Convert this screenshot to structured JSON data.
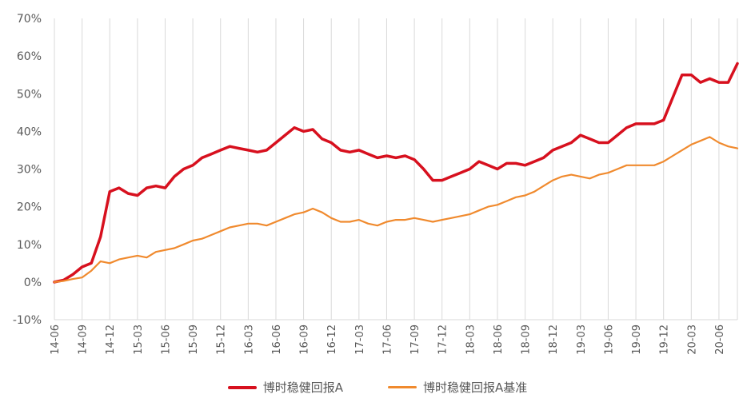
{
  "colors": {
    "fund": "#D7101E",
    "benchmark": "#F08A2E",
    "grid": "#D9D9D9",
    "text": "#595959"
  },
  "chart_data": {
    "type": "line",
    "ylim": [
      -10,
      70
    ],
    "y_ticks": [
      "70%",
      "60%",
      "50%",
      "40%",
      "30%",
      "20%",
      "10%",
      "0%",
      "-10%"
    ],
    "y_tick_values": [
      70,
      60,
      50,
      40,
      30,
      20,
      10,
      0,
      -10
    ],
    "x_ticks": [
      "14-06",
      "14-09",
      "14-12",
      "15-03",
      "15-06",
      "15-09",
      "15-12",
      "16-03",
      "16-06",
      "16-09",
      "16-12",
      "17-03",
      "17-06",
      "17-09",
      "17-12",
      "18-03",
      "18-06",
      "18-09",
      "18-12",
      "19-03",
      "19-06",
      "19-09",
      "19-12",
      "20-03",
      "20-06"
    ],
    "x_range": [
      "14-06",
      "20-08"
    ],
    "grid": "vertical",
    "legend_position": "bottom",
    "series": [
      {
        "name": "博时稳健回报A",
        "x": [
          "14-06",
          "14-07",
          "14-08",
          "14-09",
          "14-10",
          "14-11",
          "14-12",
          "15-01",
          "15-02",
          "15-03",
          "15-04",
          "15-05",
          "15-06",
          "15-07",
          "15-08",
          "15-09",
          "15-10",
          "15-11",
          "15-12",
          "16-01",
          "16-02",
          "16-03",
          "16-04",
          "16-05",
          "16-06",
          "16-07",
          "16-08",
          "16-09",
          "16-10",
          "16-11",
          "16-12",
          "17-01",
          "17-02",
          "17-03",
          "17-04",
          "17-05",
          "17-06",
          "17-07",
          "17-08",
          "17-09",
          "17-10",
          "17-11",
          "17-12",
          "18-01",
          "18-02",
          "18-03",
          "18-04",
          "18-05",
          "18-06",
          "18-07",
          "18-08",
          "18-09",
          "18-10",
          "18-11",
          "18-12",
          "19-01",
          "19-02",
          "19-03",
          "19-04",
          "19-05",
          "19-06",
          "19-07",
          "19-08",
          "19-09",
          "19-10",
          "19-11",
          "19-12",
          "20-01",
          "20-02",
          "20-03",
          "20-04",
          "20-05",
          "20-06",
          "20-07",
          "20-08"
        ],
        "values": [
          0,
          0.5,
          2,
          4,
          5,
          12,
          24,
          25,
          23.5,
          23,
          25,
          25.5,
          25,
          28,
          30,
          31,
          33,
          34,
          35,
          36,
          35.5,
          35,
          34.5,
          35,
          37,
          39,
          41,
          40,
          40.5,
          38,
          37,
          35,
          34.5,
          35,
          34,
          33,
          33.5,
          33,
          33.5,
          32.5,
          30,
          27,
          27,
          28,
          29,
          30,
          32,
          31,
          30,
          31.5,
          31.5,
          31,
          32,
          33,
          35,
          36,
          37,
          39,
          38,
          37,
          37,
          39,
          41,
          42,
          42,
          42,
          43,
          49,
          55,
          55,
          53,
          54,
          53,
          53,
          58
        ]
      },
      {
        "name": "博时稳健回报A基准",
        "x": [
          "14-06",
          "14-07",
          "14-08",
          "14-09",
          "14-10",
          "14-11",
          "14-12",
          "15-01",
          "15-02",
          "15-03",
          "15-04",
          "15-05",
          "15-06",
          "15-07",
          "15-08",
          "15-09",
          "15-10",
          "15-11",
          "15-12",
          "16-01",
          "16-02",
          "16-03",
          "16-04",
          "16-05",
          "16-06",
          "16-07",
          "16-08",
          "16-09",
          "16-10",
          "16-11",
          "16-12",
          "17-01",
          "17-02",
          "17-03",
          "17-04",
          "17-05",
          "17-06",
          "17-07",
          "17-08",
          "17-09",
          "17-10",
          "17-11",
          "17-12",
          "18-01",
          "18-02",
          "18-03",
          "18-04",
          "18-05",
          "18-06",
          "18-07",
          "18-08",
          "18-09",
          "18-10",
          "18-11",
          "18-12",
          "19-01",
          "19-02",
          "19-03",
          "19-04",
          "19-05",
          "19-06",
          "19-07",
          "19-08",
          "19-09",
          "19-10",
          "19-11",
          "19-12",
          "20-01",
          "20-02",
          "20-03",
          "20-04",
          "20-05",
          "20-06",
          "20-07",
          "20-08"
        ],
        "values": [
          0,
          0.3,
          0.8,
          1.2,
          3,
          5.5,
          5,
          6,
          6.5,
          7,
          6.5,
          8,
          8.5,
          9,
          10,
          11,
          11.5,
          12.5,
          13.5,
          14.5,
          15,
          15.5,
          15.5,
          15,
          16,
          17,
          18,
          18.5,
          19.5,
          18.5,
          17,
          16,
          16,
          16.5,
          15.5,
          15,
          16,
          16.5,
          16.5,
          17,
          16.5,
          16,
          16.5,
          17,
          17.5,
          18,
          19,
          20,
          20.5,
          21.5,
          22.5,
          23,
          24,
          25.5,
          27,
          28,
          28.5,
          28,
          27.5,
          28.5,
          29,
          30,
          31,
          31,
          31,
          31,
          32,
          33.5,
          35,
          36.5,
          37.5,
          38.5,
          37,
          36,
          35.5
        ]
      }
    ]
  }
}
